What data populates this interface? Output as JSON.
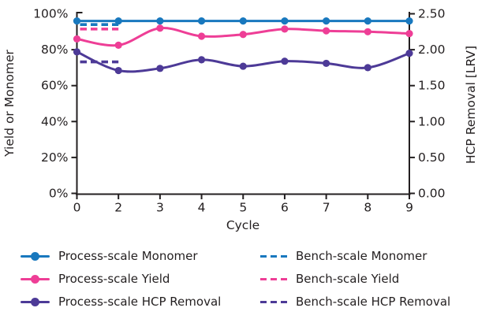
{
  "chart_data": {
    "type": "line",
    "title": "",
    "xlabel": "Cycle",
    "x_categories": [
      "0",
      "2",
      "3",
      "4",
      "5",
      "6",
      "7",
      "8",
      "9"
    ],
    "left_axis": {
      "title": "Yield or Monomer",
      "min": 0,
      "max": 100,
      "ticks": [
        {
          "label": "0%",
          "value": 0
        },
        {
          "label": "20%",
          "value": 20
        },
        {
          "label": "40%",
          "value": 40
        },
        {
          "label": "60%",
          "value": 60
        },
        {
          "label": "80%",
          "value": 80
        },
        {
          "label": "100%",
          "value": 100
        }
      ]
    },
    "right_axis": {
      "title": "HCP Removal [LRV]",
      "min": 0,
      "max": 2.5,
      "ticks": [
        {
          "label": "0.00",
          "value": 0
        },
        {
          "label": "0.50",
          "value": 0.5
        },
        {
          "label": "1.00",
          "value": 1
        },
        {
          "label": "1.50",
          "value": 1.5
        },
        {
          "label": "2.00",
          "value": 2
        },
        {
          "label": "2.50",
          "value": 2.5
        }
      ]
    },
    "series": [
      {
        "name": "Process-scale Monomer",
        "axis": "left",
        "style": "solid",
        "color": "#1878be",
        "values": [
          96,
          96,
          96,
          96,
          96,
          96,
          96,
          96,
          96
        ]
      },
      {
        "name": "Process-scale Yield",
        "axis": "left",
        "style": "solid",
        "color": "#ee3e96",
        "values": [
          86,
          82.5,
          92,
          87.5,
          88.5,
          91.5,
          90.5,
          90,
          89
        ]
      },
      {
        "name": "Process-scale HCP Removal",
        "axis": "right",
        "style": "solid",
        "color": "#4d3a97",
        "values": [
          1.97,
          1.71,
          1.74,
          1.86,
          1.77,
          1.84,
          1.81,
          1.75,
          1.95
        ]
      },
      {
        "name": "Bench-scale Monomer",
        "axis": "left",
        "style": "dashed",
        "color": "#1878be",
        "y_value": 94,
        "x_from": "0",
        "x_to": "2"
      },
      {
        "name": "Bench-scale Yield",
        "axis": "left",
        "style": "dashed",
        "color": "#ee3e96",
        "y_value": 91.5,
        "x_from": "0",
        "x_to": "2"
      },
      {
        "name": "Bench-scale HCP Removal",
        "axis": "right",
        "style": "dashed",
        "color": "#4d3a97",
        "y_value": 1.83,
        "x_from": "0",
        "x_to": "2"
      }
    ],
    "legend_position": "bottom",
    "grid": false,
    "axis_color": "#231f20"
  },
  "legend": {
    "columns": [
      {
        "items": [
          "Process-scale Monomer",
          "Process-scale Yield",
          "Process-scale HCP Removal"
        ]
      },
      {
        "items": [
          "Bench-scale Monomer",
          "Bench-scale Yield",
          "Bench-scale HCP Removal"
        ]
      }
    ]
  }
}
